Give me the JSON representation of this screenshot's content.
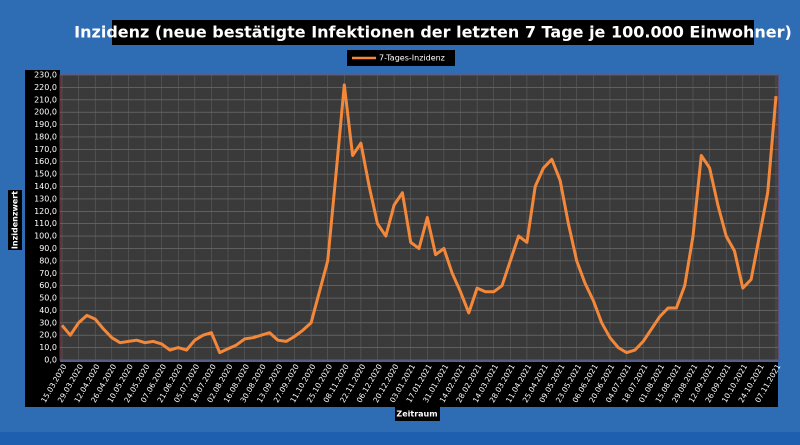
{
  "chart_data": {
    "type": "line",
    "title": "Inzidenz (neue bestätigte Infektionen der letzten 7 Tage je 100.000 Einwohner)",
    "x_label": "Zeitraum",
    "y_label": "Inzidenzwert",
    "categories": [
      "15.03.2020",
      null,
      "29.03.2020",
      null,
      "12.04.2020",
      null,
      "26.04.2020",
      null,
      "10.05.2020",
      null,
      "24.05.2020",
      null,
      "07.06.2020",
      null,
      "21.06.2020",
      null,
      "05.07.2020",
      null,
      "19.07.2020",
      null,
      "02.08.2020",
      null,
      "16.08.2020",
      null,
      "30.08.2020",
      null,
      "13.09.2020",
      null,
      "27.09.2020",
      null,
      "11.10.2020",
      null,
      "25.10.2020",
      null,
      "08.11.2020",
      null,
      "22.11.2020",
      null,
      "06.12.2020",
      null,
      "20.12.2020",
      null,
      "03.01.2021",
      null,
      "17.01.2021",
      null,
      "31.01.2021",
      null,
      "14.02.2021",
      null,
      "28.02.2021",
      null,
      "14.03.2021",
      null,
      "28.03.2021",
      null,
      "11.04.2021",
      null,
      "25.04.2021",
      null,
      "09.05.2021",
      null,
      "23.05.2021",
      null,
      "06.06.2021",
      null,
      "20.06.2021",
      null,
      "04.07.2021",
      null,
      "18.07.2021",
      null,
      "01.08.2021",
      null,
      "15.08.2021",
      null,
      "29.08.2021",
      null,
      "12.09.2021",
      null,
      "26.09.2021",
      null,
      "10.10.2021",
      null,
      "24.10.2021",
      null,
      "07.11.2021"
    ],
    "series": [
      {
        "name": "7-Tages-Inzidenz",
        "color": "#f4883a",
        "values": [
          28,
          20,
          30,
          36,
          33,
          25,
          18,
          14,
          15,
          16,
          14,
          15,
          13,
          8,
          10,
          8,
          16,
          20,
          22,
          6,
          9,
          12,
          17,
          18,
          20,
          22,
          16,
          15,
          19,
          24,
          30,
          55,
          80,
          150,
          222,
          165,
          175,
          140,
          110,
          100,
          125,
          135,
          95,
          90,
          115,
          85,
          90,
          70,
          55,
          38,
          58,
          55,
          55,
          60,
          80,
          100,
          95,
          140,
          155,
          162,
          145,
          110,
          80,
          62,
          48,
          30,
          18,
          10,
          6,
          8,
          15,
          25,
          35,
          42,
          42,
          60,
          100,
          165,
          155,
          125,
          100,
          88,
          58,
          65,
          100,
          135,
          213
        ]
      }
    ],
    "ylim": [
      0,
      230
    ],
    "yticks": [
      {
        "value": 0,
        "label": "0,0"
      },
      {
        "value": 10,
        "label": "10,0"
      },
      {
        "value": 20,
        "label": "20,0"
      },
      {
        "value": 30,
        "label": "30,0"
      },
      {
        "value": 40,
        "label": "40,0"
      },
      {
        "value": 50,
        "label": "50,0"
      },
      {
        "value": 60,
        "label": "60,0"
      },
      {
        "value": 70,
        "label": "70,0"
      },
      {
        "value": 80,
        "label": "80,0"
      },
      {
        "value": 90,
        "label": "90,0"
      },
      {
        "value": 100,
        "label": "100,0"
      },
      {
        "value": 110,
        "label": "110,0"
      },
      {
        "value": 120,
        "label": "120,0"
      },
      {
        "value": 130,
        "label": "130,0"
      },
      {
        "value": 140,
        "label": "140,0"
      },
      {
        "value": 150,
        "label": "150,0"
      },
      {
        "value": 160,
        "label": "160,0"
      },
      {
        "value": 170,
        "label": "170,0"
      },
      {
        "value": 180,
        "label": "180,0"
      },
      {
        "value": 190,
        "label": "190,0"
      },
      {
        "value": 200,
        "label": "200,0"
      },
      {
        "value": 210,
        "label": "210,0"
      },
      {
        "value": 220,
        "label": "220,0"
      },
      {
        "value": 230,
        "label": "230,0"
      }
    ],
    "grid": true
  }
}
